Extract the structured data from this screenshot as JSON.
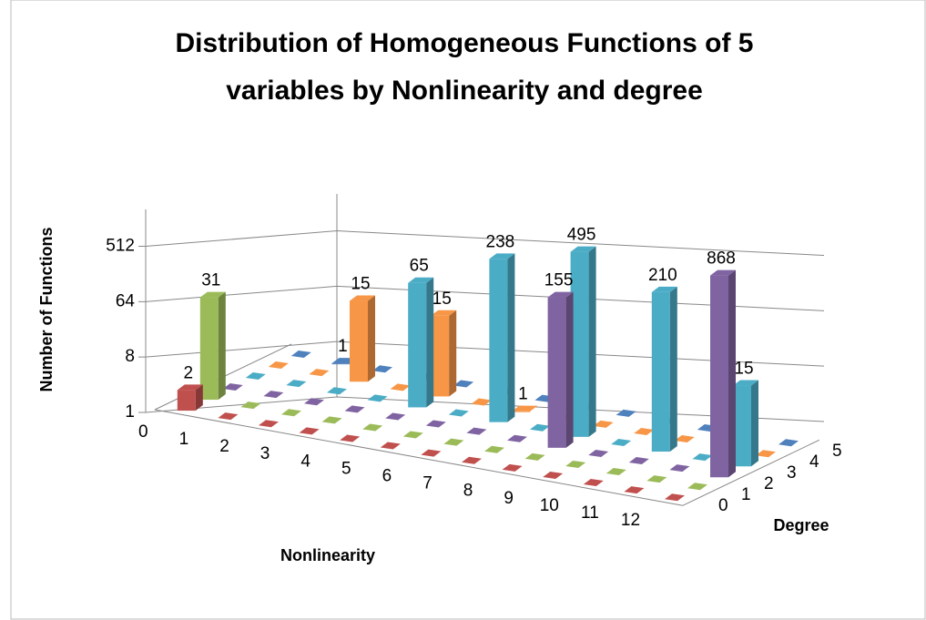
{
  "chart_data": {
    "type": "bar3d",
    "title": "Distribution of Homogeneous Functions of 5 variables by Nonlinearity and degree",
    "x_label": "Nonlinearity",
    "y_label": "Number of Functions",
    "z_label": "Degree",
    "categories": [
      "0",
      "1",
      "2",
      "3",
      "4",
      "5",
      "6",
      "7",
      "8",
      "9",
      "10",
      "11",
      "12"
    ],
    "log_scale": true,
    "ylim": [
      1,
      2048
    ],
    "yticks": [
      1,
      8,
      64,
      512
    ],
    "grid": true,
    "series": [
      {
        "name": "0",
        "color": "#c0504d",
        "values": [
          2,
          null,
          null,
          null,
          null,
          null,
          null,
          null,
          null,
          null,
          null,
          null,
          null
        ]
      },
      {
        "name": "1",
        "color": "#9bbb59",
        "values": [
          31,
          null,
          null,
          null,
          null,
          null,
          null,
          null,
          null,
          null,
          null,
          null,
          null
        ]
      },
      {
        "name": "2",
        "color": "#8064a2",
        "values": [
          null,
          null,
          null,
          null,
          null,
          null,
          null,
          null,
          155,
          null,
          null,
          null,
          868
        ]
      },
      {
        "name": "3",
        "color": "#4bacc6",
        "values": [
          null,
          null,
          null,
          null,
          65,
          null,
          238,
          null,
          495,
          null,
          210,
          null,
          15
        ]
      },
      {
        "name": "4",
        "color": "#f79646",
        "values": [
          null,
          null,
          15,
          null,
          15,
          null,
          1,
          null,
          null,
          null,
          null,
          null,
          null
        ]
      },
      {
        "name": "5",
        "color": "#4f81bd",
        "values": [
          null,
          1,
          null,
          null,
          null,
          null,
          null,
          null,
          null,
          null,
          null,
          null,
          null
        ]
      }
    ]
  }
}
